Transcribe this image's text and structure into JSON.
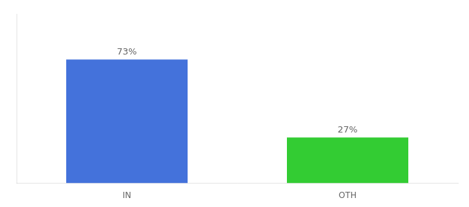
{
  "chart_data": {
    "type": "bar",
    "categories": [
      "IN",
      "OTH"
    ],
    "values": [
      73,
      27
    ],
    "value_labels": [
      "73%",
      "27%"
    ],
    "data_labels": true,
    "colors": [
      "#4472db",
      "#33cc33"
    ],
    "ylim": [
      0,
      100
    ],
    "tick_labels": "x",
    "grid": false
  }
}
